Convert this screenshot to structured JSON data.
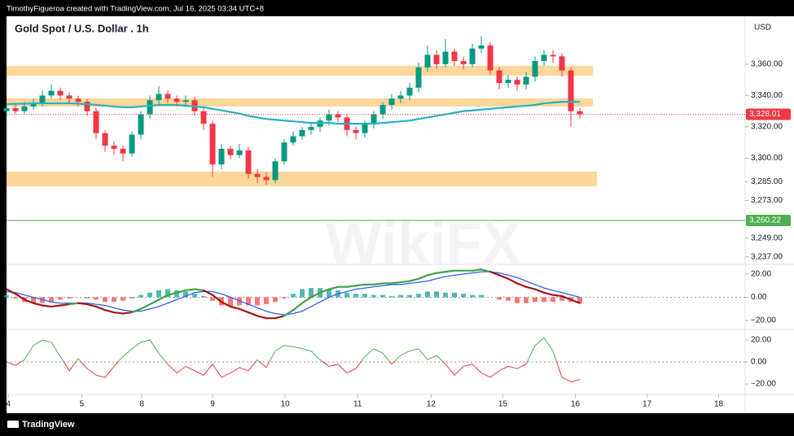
{
  "header": {
    "text": "TimothyFigueroa created with TradingView.com, Jul 16, 2025 03:34 UTC+8"
  },
  "footer": {
    "brand": "TradingView"
  },
  "watermark": "WikiFX",
  "chart_data": [
    {
      "type": "candlestick",
      "title": "Gold Spot / U.S. Dollar . 1h",
      "currency": "USD",
      "x": [
        0,
        1,
        2,
        3,
        4,
        5,
        6,
        7,
        8,
        9,
        10,
        11,
        12,
        13,
        14,
        15,
        16,
        17,
        18,
        19,
        20,
        21,
        22,
        23,
        24,
        25,
        26,
        27,
        28,
        29,
        30,
        31,
        32,
        33,
        34,
        35,
        36,
        37,
        38,
        39,
        40,
        41,
        42,
        43,
        44,
        45,
        46,
        47,
        48,
        49,
        50,
        51,
        52,
        53,
        54,
        55,
        56,
        57,
        58,
        59,
        60,
        61,
        62,
        63,
        64
      ],
      "xlim": [
        0,
        82.45
      ],
      "xticks": [
        {
          "value": 0.2,
          "label": "4"
        },
        {
          "value": 8.4,
          "label": "5"
        },
        {
          "value": 15.1,
          "label": "8"
        },
        {
          "value": 23,
          "label": "9"
        },
        {
          "value": 31.1,
          "label": "10"
        },
        {
          "value": 39.2,
          "label": "11"
        },
        {
          "value": 47.4,
          "label": "12"
        },
        {
          "value": 55.4,
          "label": "15"
        },
        {
          "value": 63.5,
          "label": "16"
        },
        {
          "value": 71.5,
          "label": "17"
        },
        {
          "value": 79.5,
          "label": "18"
        }
      ],
      "open": [
        3330,
        3332,
        3330,
        3333,
        3335,
        3340,
        3343,
        3340,
        3338,
        3336,
        3330,
        3316,
        3308,
        3306,
        3303,
        3315,
        3328,
        3337,
        3341,
        3338,
        3336,
        3337,
        3330,
        3322,
        3296,
        3306,
        3302,
        3305,
        3290,
        3288,
        3286,
        3298,
        3310,
        3314,
        3318,
        3320,
        3324,
        3328,
        3326,
        3318,
        3316,
        3322,
        3328,
        3334,
        3338,
        3340,
        3345,
        3358,
        3366,
        3360,
        3368,
        3362,
        3360,
        3370,
        3372,
        3356,
        3348,
        3350,
        3347,
        3352,
        3362,
        3366,
        3365,
        3356,
        3330
      ],
      "high": [
        3335,
        3335,
        3336,
        3338,
        3343,
        3347,
        3345,
        3342,
        3340,
        3338,
        3332,
        3318,
        3311,
        3308,
        3317,
        3330,
        3340,
        3346,
        3343,
        3340,
        3340,
        3339,
        3332,
        3324,
        3309,
        3308,
        3309,
        3307,
        3293,
        3291,
        3300,
        3312,
        3317,
        3320,
        3323,
        3326,
        3331,
        3330,
        3328,
        3320,
        3324,
        3330,
        3336,
        3341,
        3343,
        3348,
        3361,
        3372,
        3369,
        3376,
        3370,
        3365,
        3373,
        3378,
        3374,
        3358,
        3353,
        3352,
        3355,
        3365,
        3369,
        3369,
        3367,
        3358,
        3332
      ],
      "low": [
        3326,
        3328,
        3328,
        3331,
        3333,
        3338,
        3337,
        3335,
        3333,
        3327,
        3312,
        3304,
        3302,
        3298,
        3301,
        3312,
        3325,
        3334,
        3335,
        3333,
        3333,
        3327,
        3318,
        3288,
        3293,
        3299,
        3300,
        3287,
        3284,
        3283,
        3284,
        3296,
        3308,
        3312,
        3315,
        3317,
        3321,
        3323,
        3314,
        3312,
        3313,
        3319,
        3325,
        3331,
        3335,
        3337,
        3342,
        3355,
        3357,
        3358,
        3359,
        3357,
        3358,
        3367,
        3353,
        3344,
        3345,
        3343,
        3344,
        3349,
        3359,
        3361,
        3352,
        3320,
        3325
      ],
      "close": [
        3332,
        3330,
        3333,
        3335,
        3340,
        3343,
        3340,
        3338,
        3336,
        3330,
        3316,
        3308,
        3306,
        3303,
        3315,
        3328,
        3337,
        3341,
        3338,
        3336,
        3337,
        3330,
        3322,
        3296,
        3306,
        3302,
        3305,
        3290,
        3288,
        3286,
        3298,
        3310,
        3314,
        3318,
        3320,
        3324,
        3328,
        3326,
        3318,
        3316,
        3322,
        3328,
        3334,
        3338,
        3340,
        3345,
        3358,
        3366,
        3360,
        3368,
        3362,
        3360,
        3370,
        3372,
        3356,
        3348,
        3350,
        3347,
        3352,
        3362,
        3366,
        3365,
        3356,
        3330,
        3328.01
      ],
      "up_color": "#089981",
      "down_color": "#f23645",
      "moving_average": {
        "color": "#22b3c2",
        "values": [
          3334.5,
          3334.7,
          3334.8,
          3335,
          3335,
          3335,
          3335,
          3335,
          3334.8,
          3334.5,
          3334,
          3333.5,
          3333,
          3332.5,
          3332.5,
          3333,
          3333.5,
          3334,
          3334,
          3334,
          3333.5,
          3333,
          3332.5,
          3331.5,
          3330.5,
          3329.5,
          3328.5,
          3327,
          3326,
          3325,
          3324.5,
          3324,
          3323.5,
          3323,
          3322.5,
          3322.5,
          3322.5,
          3322,
          3322,
          3322,
          3322,
          3322,
          3322.5,
          3323,
          3323.5,
          3324,
          3325,
          3326,
          3327,
          3328,
          3329,
          3330,
          3330.5,
          3331,
          3331.5,
          3332,
          3332.5,
          3333,
          3333.5,
          3334,
          3335,
          3335.5,
          3336,
          3336,
          3336
        ]
      },
      "zones": [
        {
          "low": 3352.7,
          "high": 3359.0,
          "color": "#fdd69a"
        },
        {
          "low": 3333.0,
          "high": 3338.2,
          "color": "#fdd69a"
        },
        {
          "low": 3282.0,
          "high": 3291.4,
          "color": "#fdd69a"
        }
      ],
      "ylim": [
        3232.2,
        3390.6
      ],
      "yticks": [
        {
          "value": 3360,
          "label": "3,360.00"
        },
        {
          "value": 3340,
          "label": "3,340.00"
        },
        {
          "value": 3320,
          "label": "3,320.00"
        },
        {
          "value": 3300,
          "label": "3,300.00"
        },
        {
          "value": 3285,
          "label": "3,285.00"
        },
        {
          "value": 3273,
          "label": "3,273.00"
        },
        {
          "value": 3249,
          "label": "3,249.00"
        },
        {
          "value": 3237,
          "label": "3,237.00"
        }
      ],
      "last_price": {
        "value": 3328.01,
        "label": "3,328.01",
        "color": "#f23645"
      },
      "level": {
        "value": 3260.22,
        "label": "3,260.22",
        "color": "#4caf50"
      }
    },
    {
      "type": "macd",
      "macd": {
        "color": "#43a047",
        "color_below": "#a31515",
        "values": [
          7,
          3,
          -2,
          -5,
          -7,
          -8,
          -7,
          -6,
          -5,
          -6,
          -8,
          -11,
          -13,
          -14,
          -13,
          -10,
          -6,
          -2,
          2,
          4,
          6,
          7,
          6,
          2,
          -4,
          -8,
          -10,
          -13,
          -16,
          -18,
          -18,
          -16,
          -11,
          -5,
          0,
          4,
          7,
          9,
          9,
          10,
          11,
          11,
          12,
          12,
          13,
          14,
          16,
          19,
          21,
          22,
          23,
          23,
          23,
          24,
          22,
          19,
          16,
          12,
          9,
          7,
          4,
          2,
          1,
          -2,
          -5
        ]
      },
      "signal": {
        "color": "#2962ff",
        "values": [
          5,
          4,
          2,
          0,
          -2,
          -4,
          -5,
          -5,
          -5,
          -5,
          -6,
          -7,
          -9,
          -11,
          -12,
          -12,
          -10,
          -8,
          -5,
          -2,
          1,
          4,
          5,
          5,
          3,
          0,
          -3,
          -6,
          -9,
          -12,
          -14,
          -15,
          -14,
          -12,
          -8,
          -4,
          0,
          3,
          5,
          7,
          8,
          9,
          10,
          11,
          11,
          12,
          13,
          14,
          16,
          18,
          19,
          20,
          21,
          22,
          22,
          21,
          19,
          17,
          14,
          11,
          8,
          6,
          4,
          2,
          0
        ]
      },
      "histogram": {
        "color_up": "#26a69a",
        "color_down": "#ff5252",
        "values": [
          2,
          -1,
          -4,
          -5,
          -5,
          -4,
          -2,
          -1,
          0,
          -1,
          -2,
          -4,
          -4,
          -3,
          -1,
          2,
          4,
          6,
          7,
          6,
          5,
          3,
          1,
          -3,
          -7,
          -8,
          -7,
          -7,
          -7,
          -6,
          -4,
          -1,
          3,
          7,
          8,
          8,
          7,
          6,
          4,
          3,
          3,
          2,
          2,
          1,
          2,
          2,
          3,
          5,
          5,
          4,
          4,
          3,
          2,
          2,
          0,
          -2,
          -3,
          -5,
          -5,
          -4,
          -4,
          -4,
          -3,
          -4,
          -5
        ]
      },
      "ylim": [
        -27.7,
        28.4
      ],
      "yticks": [
        {
          "value": 20,
          "label": "20.00"
        },
        {
          "value": 0,
          "label": "0.00"
        },
        {
          "value": -20,
          "label": "−20.00"
        }
      ]
    },
    {
      "type": "oscillator",
      "color_up": "#4caf50",
      "color_down": "#f23645",
      "values": [
        0,
        -3,
        2,
        15,
        20,
        18,
        5,
        -8,
        3,
        -6,
        -12,
        -14,
        -4,
        5,
        12,
        18,
        20,
        8,
        -2,
        -10,
        -4,
        -8,
        -12,
        -2,
        -14,
        -10,
        -5,
        -8,
        2,
        -5,
        10,
        15,
        14,
        12,
        10,
        2,
        -4,
        -2,
        -10,
        -6,
        5,
        12,
        8,
        -2,
        6,
        10,
        12,
        2,
        6,
        -2,
        -12,
        -4,
        -2,
        -10,
        -14,
        -8,
        -4,
        -6,
        -2,
        15,
        22,
        10,
        -14,
        -18,
        -16
      ],
      "ylim": [
        -29.6,
        29.6
      ],
      "yticks": [
        {
          "value": 20,
          "label": "20.00"
        },
        {
          "value": 0,
          "label": "0.00"
        },
        {
          "value": -20,
          "label": "−20.00"
        }
      ]
    }
  ]
}
